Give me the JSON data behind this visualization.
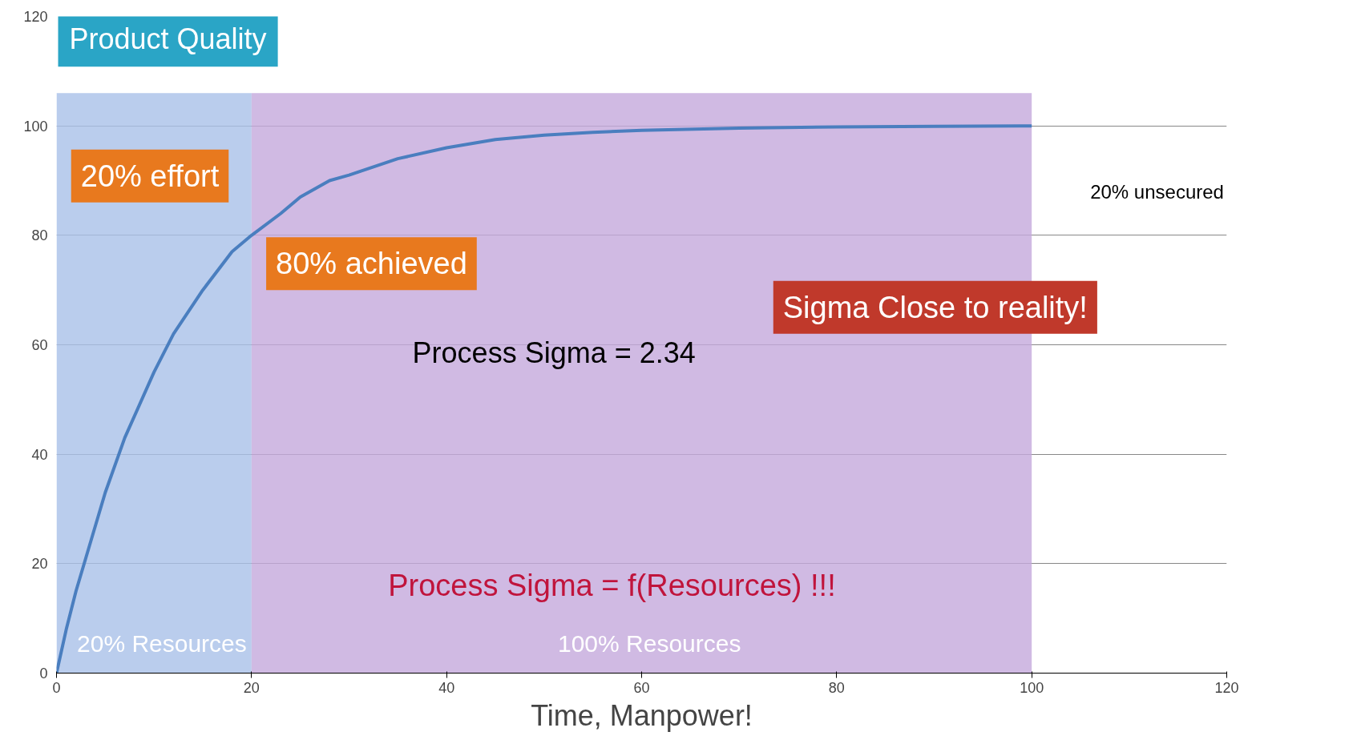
{
  "chart_data": {
    "type": "line",
    "ylabel": "Product Quality",
    "xlabel": "Time, Manpower!",
    "x": [
      0,
      1,
      2,
      3,
      5,
      7,
      10,
      12,
      15,
      18,
      20,
      23,
      25,
      28,
      30,
      35,
      40,
      45,
      50,
      55,
      60,
      70,
      80,
      90,
      100
    ],
    "series": [
      {
        "color": "#4a7ebf",
        "values": [
          0,
          8,
          15,
          21,
          33,
          43,
          55,
          62,
          70,
          77,
          80,
          84,
          87,
          90,
          91,
          94,
          96,
          97.5,
          98.3,
          98.8,
          99.2,
          99.6,
          99.8,
          99.9,
          100
        ]
      }
    ],
    "xlim": [
      0,
      120
    ],
    "ylim": [
      0,
      120
    ],
    "xticks": [
      0,
      20,
      40,
      60,
      80,
      100,
      120
    ],
    "yticks": [
      0,
      20,
      40,
      60,
      80,
      100,
      120
    ],
    "grid": "y",
    "marker": "none",
    "line_style": "solid",
    "bands": [
      {
        "axis": "x",
        "from": 0,
        "to": 20,
        "label": "20% Resources",
        "color": "#a9c0e8"
      },
      {
        "axis": "x",
        "from": 20,
        "to": 100,
        "label": "100% Resources",
        "color": "#c4a9dc"
      }
    ],
    "annotations": [
      "20% effort",
      "80% achieved",
      "20% unsecured",
      "Sigma Close to reality!",
      "Process Sigma = 2.34",
      "Process Sigma = f(Resources) !!!"
    ]
  }
}
